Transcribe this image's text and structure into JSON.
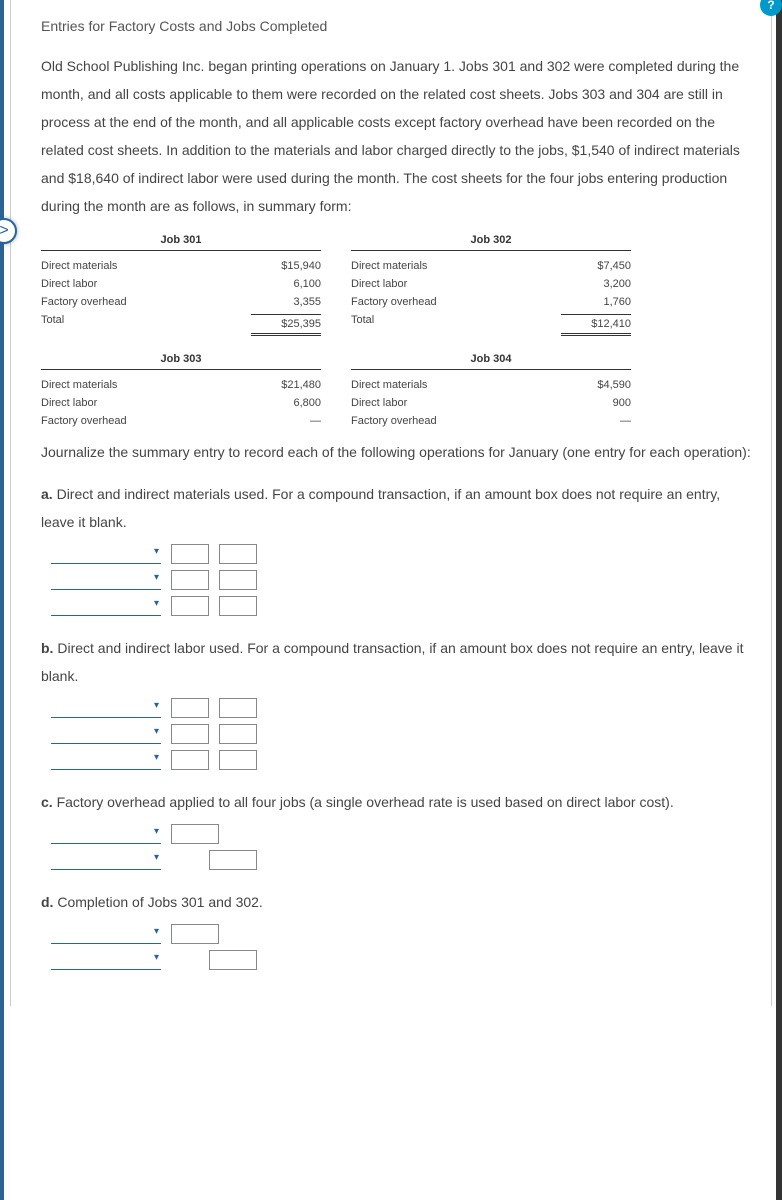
{
  "title": "Entries for Factory Costs and Jobs Completed",
  "intro": "Old School Publishing Inc. began printing operations on January 1. Jobs 301 and 302 were completed during the month, and all costs applicable to them were recorded on the related cost sheets. Jobs 303 and 304 are still in process at the end of the month, and all applicable costs except factory overhead have been recorded on the related cost sheets. In addition to the materials and labor charged directly to the jobs, $1,540 of indirect materials and $18,640 of indirect labor were used during the month. The cost sheets for the four jobs entering production during the month are as follows, in summary form:",
  "jobs_top": [
    {
      "header": "Job 301",
      "rows": [
        {
          "label": "Direct materials",
          "val": "$15,940"
        },
        {
          "label": "Direct labor",
          "val": "6,100"
        },
        {
          "label": "Factory overhead",
          "val": "3,355"
        },
        {
          "label": "Total",
          "val": "$25,395",
          "total": true
        }
      ]
    },
    {
      "header": "Job 302",
      "rows": [
        {
          "label": "Direct materials",
          "val": "$7,450"
        },
        {
          "label": "Direct labor",
          "val": "3,200"
        },
        {
          "label": "Factory overhead",
          "val": "1,760"
        },
        {
          "label": "Total",
          "val": "$12,410",
          "total": true
        }
      ]
    }
  ],
  "jobs_bottom": [
    {
      "header": "Job 303",
      "rows": [
        {
          "label": "Direct materials",
          "val": "$21,480"
        },
        {
          "label": "Direct labor",
          "val": "6,800"
        },
        {
          "label": "Factory overhead",
          "val": "—"
        }
      ]
    },
    {
      "header": "Job 304",
      "rows": [
        {
          "label": "Direct materials",
          "val": "$4,590"
        },
        {
          "label": "Direct labor",
          "val": "900"
        },
        {
          "label": "Factory overhead",
          "val": "—"
        }
      ]
    }
  ],
  "journalize": "Journalize the summary entry to record each of the following operations for January (one entry for each operation):",
  "parts": {
    "a": {
      "letter": "a.",
      "text": "Direct and indirect materials used. For a compound transaction, if an amount box does not require an entry, leave it blank."
    },
    "b": {
      "letter": "b.",
      "text": "Direct and indirect labor used. For a compound transaction, if an amount box does not require an entry, leave it blank."
    },
    "c": {
      "letter": "c.",
      "text": "Factory overhead applied to all four jobs (a single overhead rate is used based on direct labor cost)."
    },
    "d": {
      "letter": "d.",
      "text": "Completion of Jobs 301 and 302."
    }
  },
  "nav_glyph": ">",
  "help_glyph": "?"
}
